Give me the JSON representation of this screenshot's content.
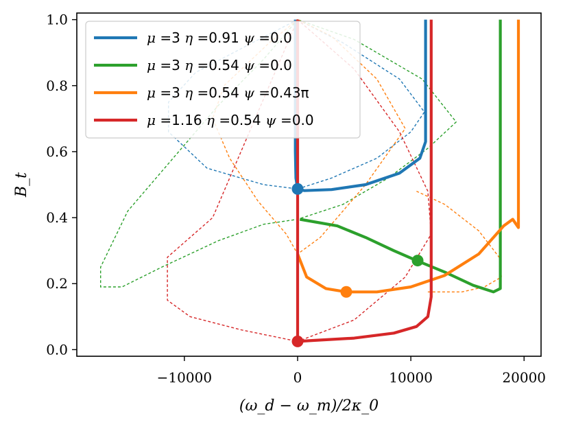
{
  "chart_data": {
    "type": "line",
    "title": "",
    "xlabel": "(ω_d − ω_m)/2κ_0",
    "ylabel": "B_t",
    "xlim": [
      -19500,
      21500
    ],
    "ylim": [
      -0.02,
      1.02
    ],
    "xticks": [
      -10000,
      0,
      10000,
      20000
    ],
    "xtick_labels": [
      "−10000",
      "0",
      "10000",
      "20000"
    ],
    "yticks": [
      0.0,
      0.2,
      0.4,
      0.6,
      0.8,
      1.0
    ],
    "ytick_labels": [
      "0.0",
      "0.2",
      "0.4",
      "0.6",
      "0.8",
      "1.0"
    ],
    "grid": false,
    "legend_position": "top-left",
    "series": [
      {
        "name": "μ =3 η =0.91 ψ =0.0",
        "legend": [
          [
            "μ",
            " =3 "
          ],
          [
            "η",
            " =0.91 "
          ],
          [
            "ψ",
            " =0.0"
          ]
        ],
        "color": "#1f77b4",
        "solid": [
          [
            -200,
            1.0
          ],
          [
            -200,
            0.6
          ],
          [
            -150,
            0.52
          ],
          [
            0,
            0.487
          ],
          [
            600,
            0.482
          ],
          [
            3000,
            0.485
          ],
          [
            6000,
            0.5
          ],
          [
            9000,
            0.535
          ],
          [
            10800,
            0.58
          ],
          [
            11300,
            0.63
          ],
          [
            11300,
            1.0
          ]
        ],
        "dashed": [
          [
            0,
            1.0
          ],
          [
            -4000,
            0.93
          ],
          [
            -9000,
            0.84
          ],
          [
            -11400,
            0.75
          ],
          [
            -11400,
            0.66
          ],
          [
            -8000,
            0.55
          ],
          [
            -3000,
            0.5
          ],
          [
            0,
            0.487
          ],
          [
            3000,
            0.52
          ],
          [
            7000,
            0.58
          ],
          [
            10000,
            0.66
          ],
          [
            11200,
            0.72
          ],
          [
            9000,
            0.82
          ],
          [
            4000,
            0.93
          ],
          [
            0,
            1.0
          ]
        ],
        "marker": [
          0,
          0.487
        ]
      },
      {
        "name": "μ =3 η =0.54 ψ =0.0",
        "legend": [
          [
            "μ",
            " =3 "
          ],
          [
            "η",
            " =0.54 "
          ],
          [
            "ψ",
            " =0.0"
          ]
        ],
        "color": "#2ca02c",
        "solid": [
          [
            200,
            0.395
          ],
          [
            3500,
            0.375
          ],
          [
            6000,
            0.34
          ],
          [
            8500,
            0.3
          ],
          [
            10500,
            0.27
          ],
          [
            13000,
            0.235
          ],
          [
            15500,
            0.195
          ],
          [
            17300,
            0.175
          ],
          [
            17900,
            0.185
          ],
          [
            17900,
            1.0
          ]
        ],
        "dashed": [
          [
            0,
            1.0
          ],
          [
            -3000,
            0.88
          ],
          [
            -7000,
            0.74
          ],
          [
            -11000,
            0.58
          ],
          [
            -15000,
            0.42
          ],
          [
            -17400,
            0.25
          ],
          [
            -17400,
            0.19
          ],
          [
            -15500,
            0.19
          ],
          [
            -12000,
            0.25
          ],
          [
            -7000,
            0.33
          ],
          [
            -3000,
            0.38
          ],
          [
            0,
            0.395
          ],
          [
            4000,
            0.44
          ],
          [
            8000,
            0.52
          ],
          [
            11500,
            0.61
          ],
          [
            14000,
            0.69
          ],
          [
            11000,
            0.82
          ],
          [
            5000,
            0.94
          ],
          [
            0,
            1.0
          ]
        ],
        "marker": [
          10600,
          0.27
        ]
      },
      {
        "name": "μ =3 η =0.54 ψ =0.43π",
        "legend": [
          [
            "μ",
            " =3 "
          ],
          [
            "η",
            " =0.54 "
          ],
          [
            "ψ",
            " =0.43π"
          ]
        ],
        "color": "#ff7f0e",
        "solid": [
          [
            0,
            0.29
          ],
          [
            800,
            0.22
          ],
          [
            2500,
            0.185
          ],
          [
            4300,
            0.175
          ],
          [
            7000,
            0.175
          ],
          [
            10000,
            0.19
          ],
          [
            13000,
            0.225
          ],
          [
            16000,
            0.29
          ],
          [
            18200,
            0.375
          ],
          [
            19000,
            0.395
          ],
          [
            19500,
            0.37
          ],
          [
            19500,
            1.0
          ]
        ],
        "dashed": [
          [
            0,
            1.0
          ],
          [
            -2500,
            0.93
          ],
          [
            -6500,
            0.8
          ],
          [
            -7500,
            0.7
          ],
          [
            -6000,
            0.58
          ],
          [
            -3500,
            0.45
          ],
          [
            -1000,
            0.35
          ],
          [
            0,
            0.29
          ],
          [
            2000,
            0.34
          ],
          [
            6000,
            0.5
          ],
          [
            9500,
            0.67
          ],
          [
            7000,
            0.82
          ],
          [
            3000,
            0.95
          ],
          [
            0,
            1.0
          ]
        ],
        "dashed2": [
          [
            11500,
            0.175
          ],
          [
            14500,
            0.175
          ],
          [
            16500,
            0.19
          ],
          [
            18000,
            0.22
          ],
          [
            17800,
            0.28
          ],
          [
            16000,
            0.36
          ],
          [
            13000,
            0.44
          ],
          [
            10500,
            0.48
          ]
        ],
        "marker": [
          4300,
          0.175
        ]
      },
      {
        "name": "μ =1.16 η =0.54 ψ =0.0",
        "legend": [
          [
            "μ",
            " =1.16 "
          ],
          [
            "η",
            " =0.54 "
          ],
          [
            "ψ",
            " =0.0"
          ]
        ],
        "color": "#d62728",
        "solid": [
          [
            0,
            1.0
          ],
          [
            0,
            0.025
          ],
          [
            1500,
            0.028
          ],
          [
            5000,
            0.035
          ],
          [
            8500,
            0.05
          ],
          [
            10500,
            0.07
          ],
          [
            11500,
            0.1
          ],
          [
            11800,
            0.16
          ],
          [
            11800,
            1.0
          ]
        ],
        "dashed": [
          [
            0,
            1.0
          ],
          [
            -2500,
            0.8
          ],
          [
            -5000,
            0.6
          ],
          [
            -7500,
            0.4
          ],
          [
            -11500,
            0.28
          ],
          [
            -11500,
            0.15
          ],
          [
            -9500,
            0.1
          ],
          [
            -5000,
            0.06
          ],
          [
            0,
            0.025
          ],
          [
            5000,
            0.09
          ],
          [
            9500,
            0.22
          ],
          [
            11800,
            0.35
          ],
          [
            11500,
            0.48
          ],
          [
            9000,
            0.66
          ],
          [
            5000,
            0.85
          ],
          [
            0,
            1.0
          ]
        ],
        "marker": [
          0,
          0.025
        ]
      }
    ]
  }
}
